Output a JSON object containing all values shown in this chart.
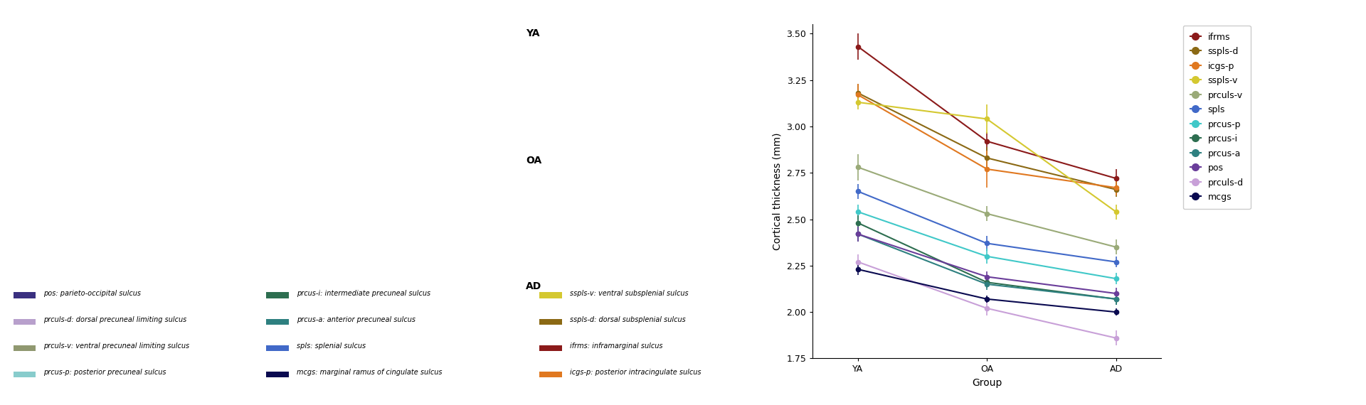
{
  "groups": [
    "YA",
    "OA",
    "AD"
  ],
  "series": [
    {
      "label": "ifrms",
      "color": "#8B1A1A",
      "values": [
        3.43,
        2.92,
        2.72
      ],
      "errors": [
        0.07,
        0.05,
        0.05
      ]
    },
    {
      "label": "sspls-d",
      "color": "#8B6914",
      "values": [
        3.18,
        2.83,
        2.66
      ],
      "errors": [
        0.05,
        0.06,
        0.04
      ]
    },
    {
      "label": "icgs-p",
      "color": "#E07820",
      "values": [
        3.17,
        2.77,
        2.67
      ],
      "errors": [
        0.06,
        0.1,
        0.04
      ]
    },
    {
      "label": "sspls-v",
      "color": "#D4C830",
      "values": [
        3.13,
        3.04,
        2.54
      ],
      "errors": [
        0.04,
        0.08,
        0.04
      ]
    },
    {
      "label": "prculs-v",
      "color": "#9AAA78",
      "values": [
        2.78,
        2.53,
        2.35
      ],
      "errors": [
        0.07,
        0.04,
        0.04
      ]
    },
    {
      "label": "spls",
      "color": "#4169C8",
      "values": [
        2.65,
        2.37,
        2.27
      ],
      "errors": [
        0.04,
        0.04,
        0.03
      ]
    },
    {
      "label": "prcus-p",
      "color": "#40C8C8",
      "values": [
        2.54,
        2.3,
        2.18
      ],
      "errors": [
        0.04,
        0.04,
        0.03
      ]
    },
    {
      "label": "prcus-i",
      "color": "#2D6E50",
      "values": [
        2.48,
        2.16,
        2.07
      ],
      "errors": [
        0.04,
        0.03,
        0.03
      ]
    },
    {
      "label": "prcus-a",
      "color": "#2E8080",
      "values": [
        2.42,
        2.15,
        2.07
      ],
      "errors": [
        0.04,
        0.03,
        0.03
      ]
    },
    {
      "label": "pos",
      "color": "#6A3D9A",
      "values": [
        2.42,
        2.19,
        2.1
      ],
      "errors": [
        0.04,
        0.03,
        0.03
      ]
    },
    {
      "label": "prculs-d",
      "color": "#C8A0D8",
      "values": [
        2.27,
        2.02,
        1.86
      ],
      "errors": [
        0.04,
        0.04,
        0.04
      ]
    },
    {
      "label": "mcgs",
      "color": "#0A0A50",
      "values": [
        2.23,
        2.07,
        2.0
      ],
      "errors": [
        0.03,
        0.02,
        0.02
      ]
    }
  ],
  "ylabel": "Cortical thickness (mm)",
  "xlabel": "Group",
  "ylim": [
    1.75,
    3.55
  ],
  "yticks": [
    1.75,
    2.0,
    2.25,
    2.5,
    2.75,
    3.0,
    3.25,
    3.5
  ],
  "background_color": "#ffffff",
  "legend_fontsize": 9,
  "axis_fontsize": 10,
  "tick_fontsize": 9,
  "left_labels": [
    [
      "pos",
      "#3A3080",
      "pos: parieto-occipital sulcus"
    ],
    [
      "prculs-d",
      "#B8A0CC",
      "prculs-d: dorsal precuneal limiting sulcus"
    ],
    [
      "prculs-v",
      "#909870",
      "prculs-v: ventral precuneal limiting sulcus"
    ],
    [
      "prcus-p",
      "#88CCCC",
      "prcus-p: posterior precuneal sulcus"
    ]
  ],
  "mid_labels_col1": [
    [
      "prcus-i",
      "#2D6E50",
      "prcus-i: intermediate precuneal sulcus"
    ],
    [
      "prcus-a",
      "#2E8080",
      "prcus-a: anterior precuneal sulcus"
    ],
    [
      "spls",
      "#4169C8",
      "spls: splenial sulcus"
    ],
    [
      "mcgs",
      "#0A0A50",
      "mcgs: marginal ramus of cingulate sulcus"
    ]
  ],
  "mid_labels_col2": [
    [
      "sspls-v",
      "#D4C830",
      "sspls-v: ventral subsplenial sulcus"
    ],
    [
      "sspls-d",
      "#8B6914",
      "sspls-d: dorsal subsplenial sulcus"
    ],
    [
      "ifrms",
      "#8B1A1A",
      "ifrms: inframarginal sulcus"
    ],
    [
      "icgs-p",
      "#E07820",
      "icgs-p: posterior intracingulate sulcus"
    ]
  ]
}
